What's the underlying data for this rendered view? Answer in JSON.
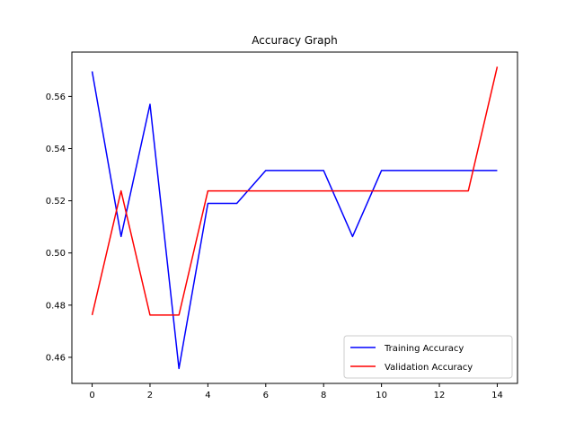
{
  "chart_data": {
    "type": "line",
    "title": "Accuracy Graph",
    "xlabel": "",
    "ylabel": "",
    "xlim": [
      -0.7,
      14.7
    ],
    "ylim": [
      0.45,
      0.577
    ],
    "x_ticks": [
      0,
      2,
      4,
      6,
      8,
      10,
      12,
      14
    ],
    "y_ticks": [
      0.46,
      0.48,
      0.5,
      0.52,
      0.54,
      0.56
    ],
    "grid": false,
    "legend_position": "lower-right",
    "x": [
      0,
      1,
      2,
      3,
      4,
      5,
      6,
      7,
      8,
      9,
      10,
      11,
      12,
      13,
      14
    ],
    "series": [
      {
        "name": "Training Accuracy",
        "color": "#0000ff",
        "values": [
          0.5696,
          0.5063,
          0.557,
          0.4557,
          0.519,
          0.519,
          0.5316,
          0.5316,
          0.5316,
          0.5063,
          0.5316,
          0.5316,
          0.5316,
          0.5316,
          0.5316
        ]
      },
      {
        "name": "Validation Accuracy",
        "color": "#ff0000",
        "values": [
          0.4762,
          0.5238,
          0.4762,
          0.4762,
          0.5238,
          0.5238,
          0.5238,
          0.5238,
          0.5238,
          0.5238,
          0.5238,
          0.5238,
          0.5238,
          0.5238,
          0.5714
        ]
      }
    ]
  }
}
